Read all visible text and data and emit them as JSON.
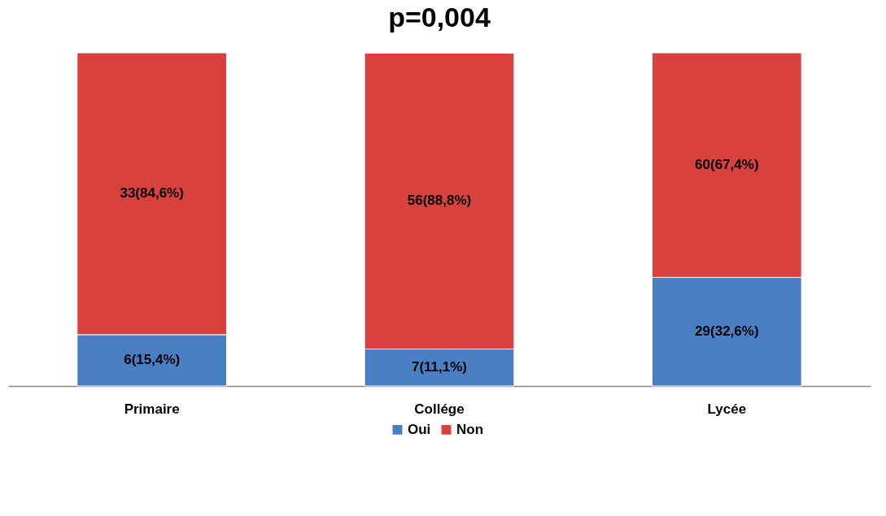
{
  "chart_data": {
    "type": "bar",
    "stacked": true,
    "title": "p=0,004",
    "categories": [
      "Primaire",
      "Collége",
      "Lycée"
    ],
    "series": [
      {
        "name": "Oui",
        "color": "#4a7fc4",
        "values": [
          15.4,
          11.1,
          32.6
        ],
        "value_labels": [
          "6(15,4%)",
          "7(11,1%)",
          "29(32,6%)"
        ]
      },
      {
        "name": "Non",
        "color": "#d8413e",
        "values": [
          84.6,
          88.8,
          67.4
        ],
        "value_labels": [
          "33(84,6%)",
          "56(88,8%)",
          "60(67,4%)"
        ]
      }
    ],
    "legend": "bottom"
  }
}
